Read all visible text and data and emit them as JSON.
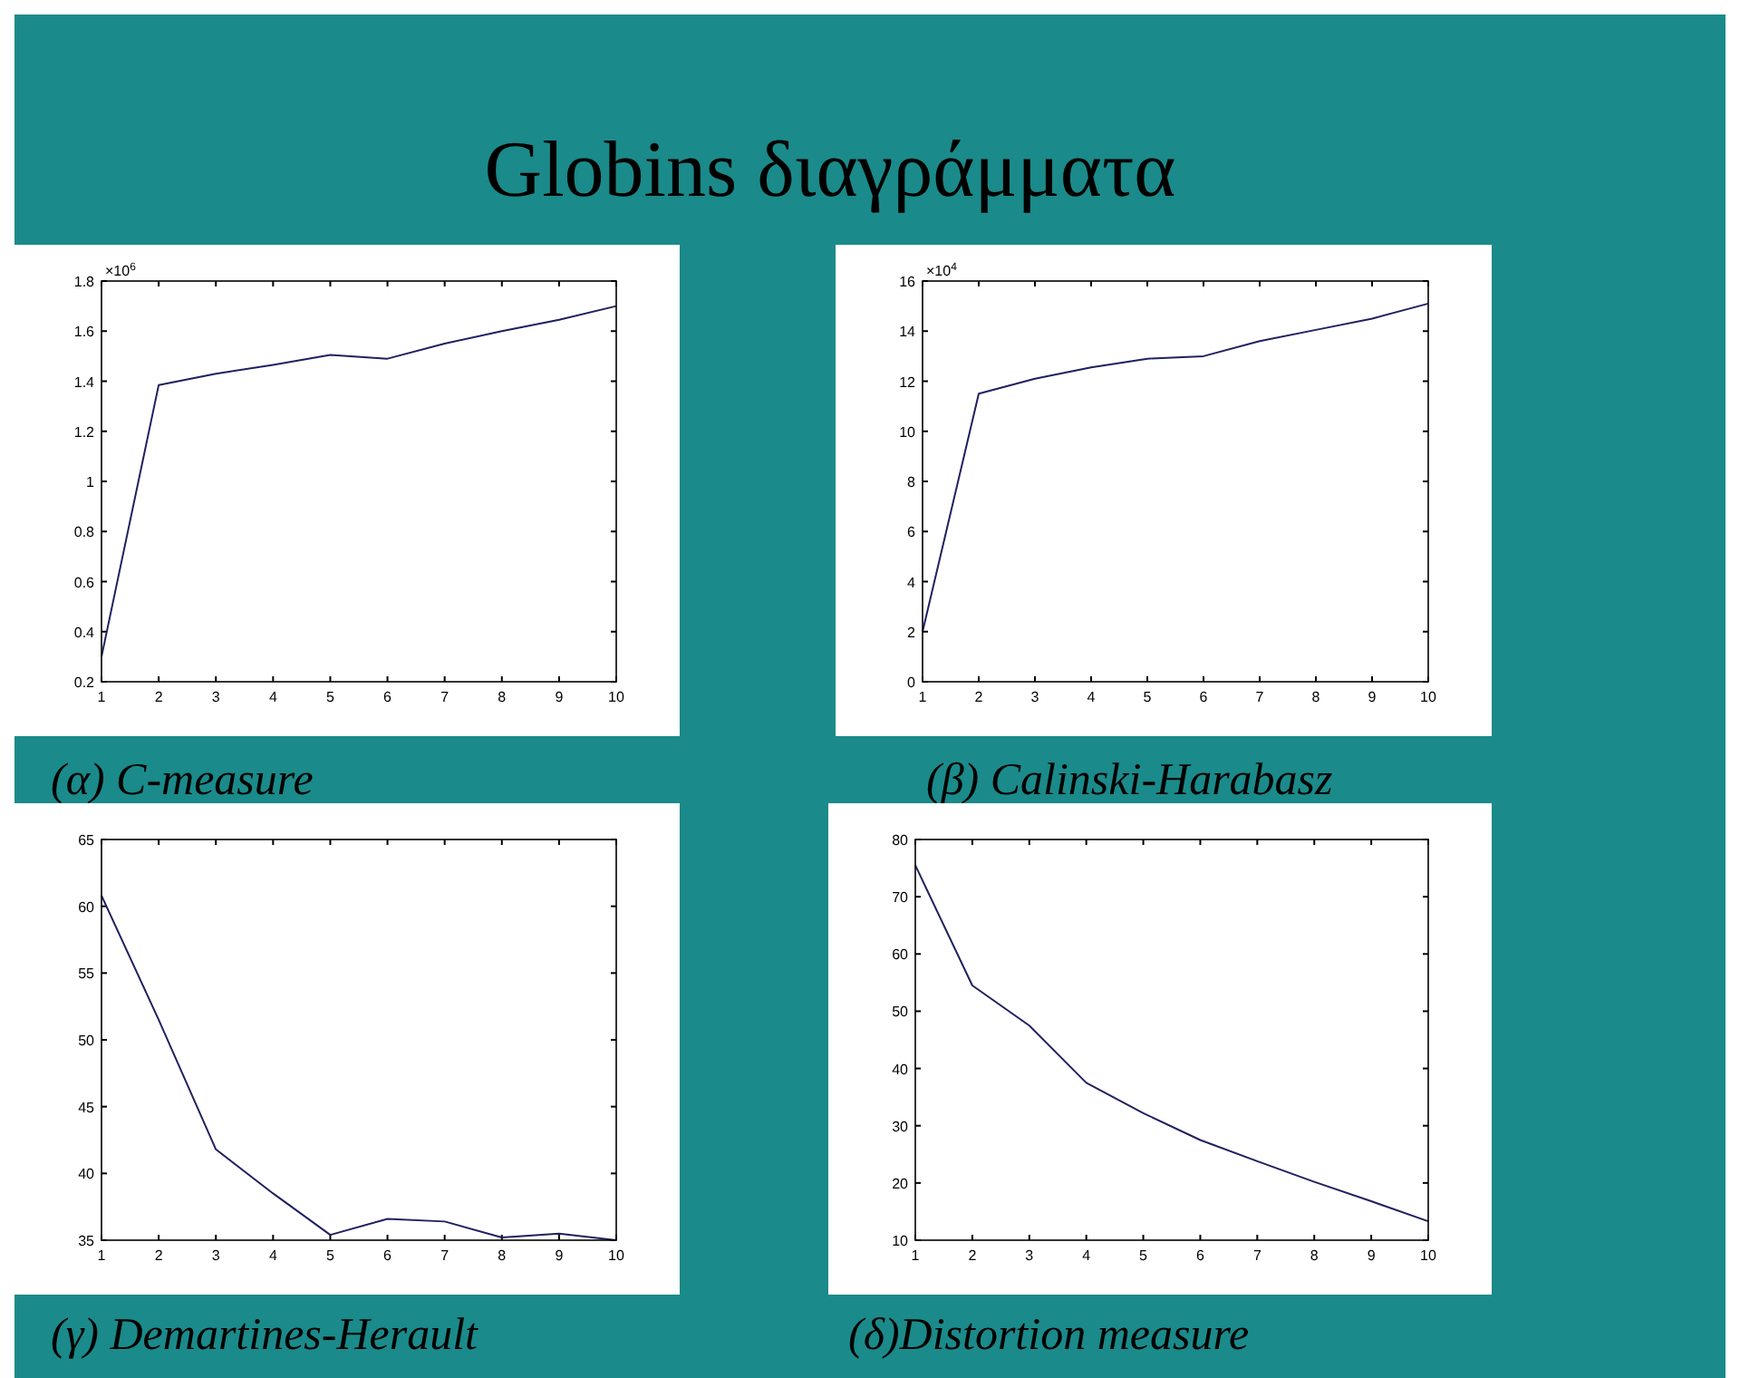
{
  "chart_data": [
    {
      "type": "line",
      "title": "Globins διαγράμματα",
      "xlabel": "(α) C-measure",
      "annotations": [
        "×10$^{6}$"
      ],
      "x": [
        1,
        2,
        3,
        4,
        5,
        6,
        7,
        8,
        9,
        10
      ],
      "xlim": [
        1,
        10
      ],
      "xticks": [
        1,
        2,
        3,
        4,
        5,
        6,
        7,
        8,
        9,
        10
      ],
      "ylim": [
        0.2,
        1.8
      ],
      "yticks": [
        0.2,
        0.4,
        0.6,
        0.8,
        1,
        1.2,
        1.4,
        1.6,
        1.8
      ],
      "grid": false,
      "marker": "none",
      "line_style": "solid",
      "series": [
        {
          "color": "#202060",
          "values": [
            0.3,
            1.385,
            1.43,
            1.465,
            1.505,
            1.49,
            1.55,
            1.6,
            1.645,
            1.7
          ]
        }
      ]
    },
    {
      "type": "line",
      "xlabel": "(β) Calinski-Harabasz",
      "annotations": [
        "×10$^{4}$"
      ],
      "x": [
        1,
        2,
        3,
        4,
        5,
        6,
        7,
        8,
        9,
        10
      ],
      "xlim": [
        1,
        10
      ],
      "xticks": [
        1,
        2,
        3,
        4,
        5,
        6,
        7,
        8,
        9,
        10
      ],
      "ylim": [
        0,
        16
      ],
      "yticks": [
        0,
        2,
        4,
        6,
        8,
        10,
        12,
        14,
        16
      ],
      "grid": false,
      "marker": "none",
      "line_style": "solid",
      "series": [
        {
          "color": "#202060",
          "values": [
            2,
            11.5,
            12.1,
            12.55,
            12.9,
            13,
            13.6,
            14.05,
            14.5,
            15.1
          ]
        }
      ]
    },
    {
      "type": "line",
      "xlabel": "(γ) Demartines-Herault",
      "x": [
        1,
        2,
        3,
        4,
        5,
        6,
        7,
        8,
        9,
        10
      ],
      "xlim": [
        1,
        10
      ],
      "xticks": [
        1,
        2,
        3,
        4,
        5,
        6,
        7,
        8,
        9,
        10
      ],
      "ylim": [
        35,
        65
      ],
      "yticks": [
        35,
        40,
        45,
        50,
        55,
        60,
        65
      ],
      "grid": false,
      "marker": "none",
      "line_style": "solid",
      "series": [
        {
          "color": "#202060",
          "values": [
            60.8,
            51.5,
            41.8,
            38.5,
            35.4,
            36.6,
            36.4,
            35.2,
            35.5,
            35
          ]
        }
      ]
    },
    {
      "type": "line",
      "xlabel": "(δ)Distortion measure",
      "x": [
        1,
        2,
        3,
        4,
        5,
        6,
        7,
        8,
        9,
        10
      ],
      "xlim": [
        1,
        10
      ],
      "xticks": [
        1,
        2,
        3,
        4,
        5,
        6,
        7,
        8,
        9,
        10
      ],
      "ylim": [
        10,
        80
      ],
      "yticks": [
        10,
        20,
        30,
        40,
        50,
        60,
        70,
        80
      ],
      "grid": false,
      "marker": "none",
      "line_style": "solid",
      "series": [
        {
          "color": "#202060",
          "values": [
            75.5,
            54.5,
            47.5,
            37.5,
            32.2,
            27.5,
            23.8,
            20.2,
            16.8,
            13.3
          ]
        }
      ]
    }
  ]
}
